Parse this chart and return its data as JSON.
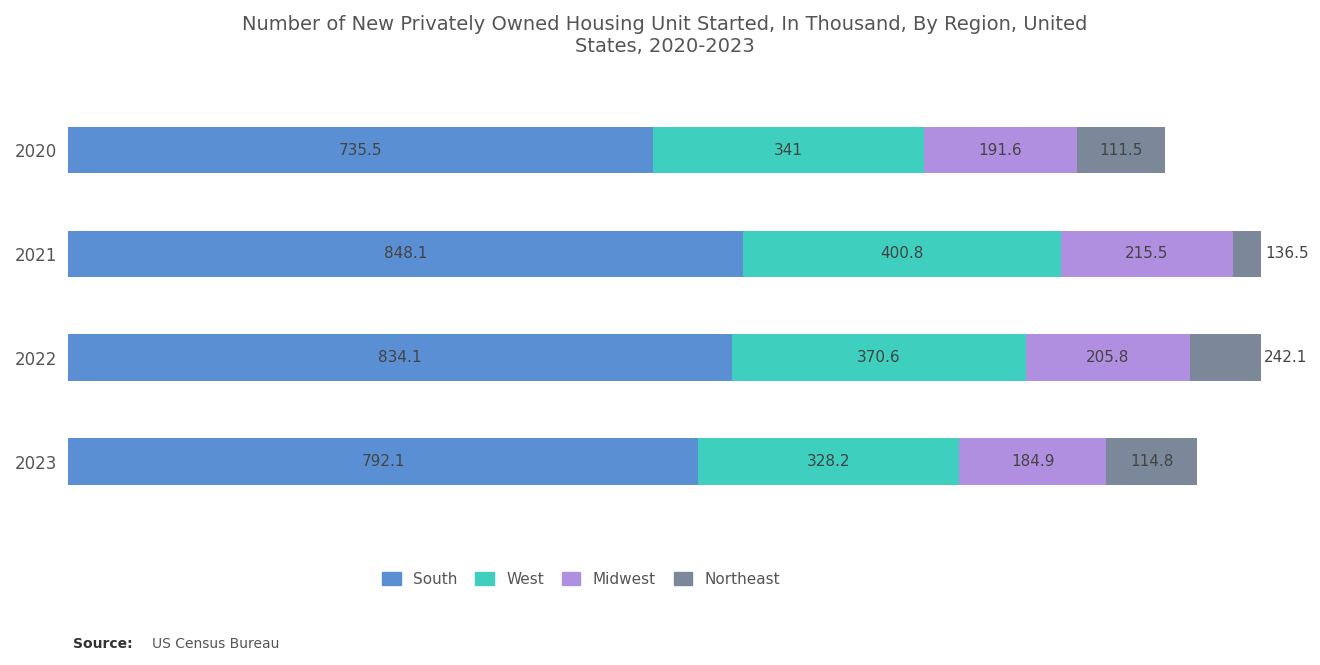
{
  "title": "Number of New Privately Owned Housing Unit Started, In Thousand, By Region, United\nStates, 2020-2023",
  "years": [
    "2020",
    "2021",
    "2022",
    "2023"
  ],
  "regions": [
    "South",
    "West",
    "Midwest",
    "Northeast"
  ],
  "colors": [
    "#5B8FD4",
    "#3ECFBE",
    "#B18FE0",
    "#7A8899"
  ],
  "data": {
    "South": [
      735.5,
      848.1,
      834.1,
      792.1
    ],
    "West": [
      341.0,
      400.8,
      370.6,
      328.2
    ],
    "Midwest": [
      191.6,
      215.5,
      205.8,
      184.9
    ],
    "Northeast": [
      111.5,
      136.5,
      242.1,
      114.8
    ]
  },
  "west_labels": [
    "341",
    "400.8",
    "370.6",
    "328.2"
  ],
  "bar_height": 0.45,
  "background_color": "#FFFFFF",
  "text_color": "#555555",
  "bar_text_color": "#444444",
  "title_fontsize": 14,
  "label_fontsize": 11,
  "axis_label_fontsize": 12,
  "legend_fontsize": 11,
  "source_bold": "Source:",
  "source_normal": "  US Census Bureau",
  "xlim": 1500
}
